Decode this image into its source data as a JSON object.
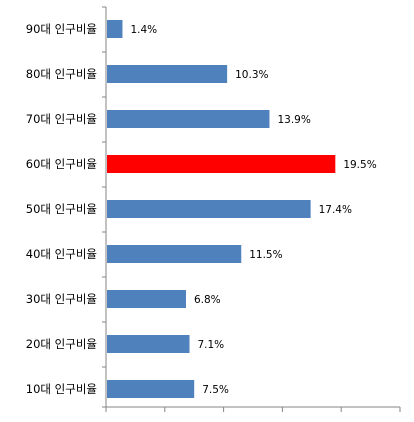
{
  "chart_data": {
    "type": "bar",
    "orientation": "horizontal",
    "categories": [
      "90대 인구비율",
      "80대 인구비율",
      "70대 인구비율",
      "60대 인구비율",
      "50대 인구비율",
      "40대 인구비율",
      "30대 인구비율",
      "20대 인구비율",
      "10대 인구비율"
    ],
    "values": [
      1.4,
      10.3,
      13.9,
      19.5,
      17.4,
      11.5,
      6.8,
      7.1,
      7.5
    ],
    "value_labels": [
      "1.4%",
      "10.3%",
      "13.9%",
      "19.5%",
      "17.4%",
      "11.5%",
      "6.8%",
      "7.1%",
      "7.5%"
    ],
    "xlim": [
      0,
      25
    ],
    "x_tick_step": 5,
    "x_tick_labels_visible": false,
    "grid": false,
    "legend": "none",
    "colors": {
      "bar": "#4f81bd",
      "highlight": "#ff0000",
      "axis": "#868686",
      "text": "#000000"
    },
    "highlight_category": "60대 인구비율"
  }
}
